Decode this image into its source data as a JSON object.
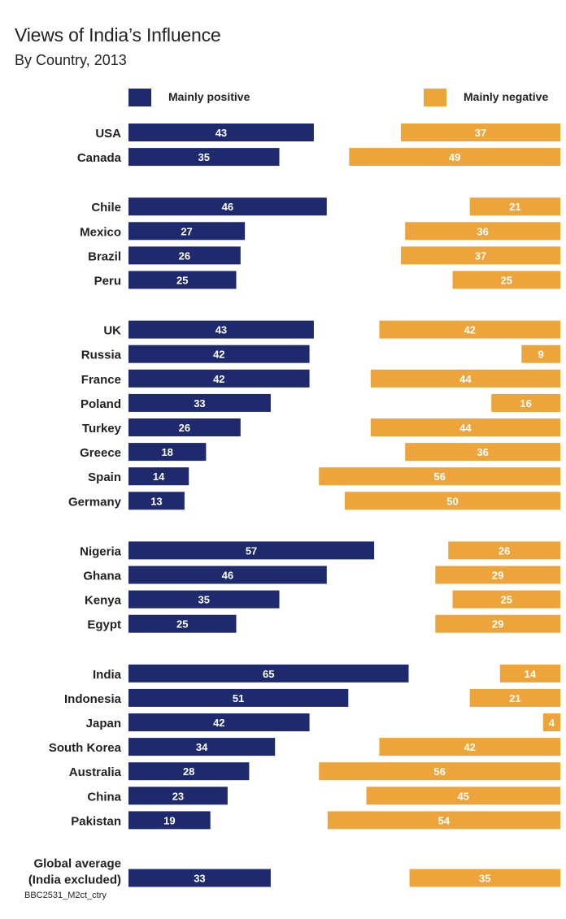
{
  "title": "Views of India’s Influence",
  "subtitle": "By Country, 2013",
  "footer": "BBC2531_M2ct_ctry",
  "colors": {
    "positive": "#1f2a6e",
    "negative": "#eda43a",
    "bar_text": "#ffffff",
    "label_text": "#222222"
  },
  "legend": {
    "position": "top",
    "positive_label": "Mainly positive",
    "negative_label": "Mainly negative"
  },
  "chart_data": {
    "type": "bar",
    "title": "Views of India’s Influence",
    "subtitle": "By Country, 2013",
    "xlim": [
      0,
      100
    ],
    "grid": false,
    "legend": "top",
    "groups": [
      {
        "countries": [
          {
            "name": "USA",
            "positive": 43,
            "negative": 37
          },
          {
            "name": "Canada",
            "positive": 35,
            "negative": 49
          }
        ]
      },
      {
        "countries": [
          {
            "name": "Chile",
            "positive": 46,
            "negative": 21
          },
          {
            "name": "Mexico",
            "positive": 27,
            "negative": 36
          },
          {
            "name": "Brazil",
            "positive": 26,
            "negative": 37
          },
          {
            "name": "Peru",
            "positive": 25,
            "negative": 25
          }
        ]
      },
      {
        "countries": [
          {
            "name": "UK",
            "positive": 43,
            "negative": 42
          },
          {
            "name": "Russia",
            "positive": 42,
            "negative": 9
          },
          {
            "name": "France",
            "positive": 42,
            "negative": 44
          },
          {
            "name": "Poland",
            "positive": 33,
            "negative": 16
          },
          {
            "name": "Turkey",
            "positive": 26,
            "negative": 44
          },
          {
            "name": "Greece",
            "positive": 18,
            "negative": 36
          },
          {
            "name": "Spain",
            "positive": 14,
            "negative": 56
          },
          {
            "name": "Germany",
            "positive": 13,
            "negative": 50
          }
        ]
      },
      {
        "countries": [
          {
            "name": "Nigeria",
            "positive": 57,
            "negative": 26
          },
          {
            "name": "Ghana",
            "positive": 46,
            "negative": 29
          },
          {
            "name": "Kenya",
            "positive": 35,
            "negative": 25
          },
          {
            "name": "Egypt",
            "positive": 25,
            "negative": 29
          }
        ]
      },
      {
        "countries": [
          {
            "name": "India",
            "positive": 65,
            "negative": 14
          },
          {
            "name": "Indonesia",
            "positive": 51,
            "negative": 21
          },
          {
            "name": "Japan",
            "positive": 42,
            "negative": 4
          },
          {
            "name": "South Korea",
            "positive": 34,
            "negative": 42
          },
          {
            "name": "Australia",
            "positive": 28,
            "negative": 56
          },
          {
            "name": "China",
            "positive": 23,
            "negative": 45
          },
          {
            "name": "Pakistan",
            "positive": 19,
            "negative": 54
          }
        ]
      },
      {
        "countries": [
          {
            "name": "Global average",
            "name2": "(India excluded)",
            "positive": 33,
            "negative": 35
          }
        ]
      }
    ]
  }
}
